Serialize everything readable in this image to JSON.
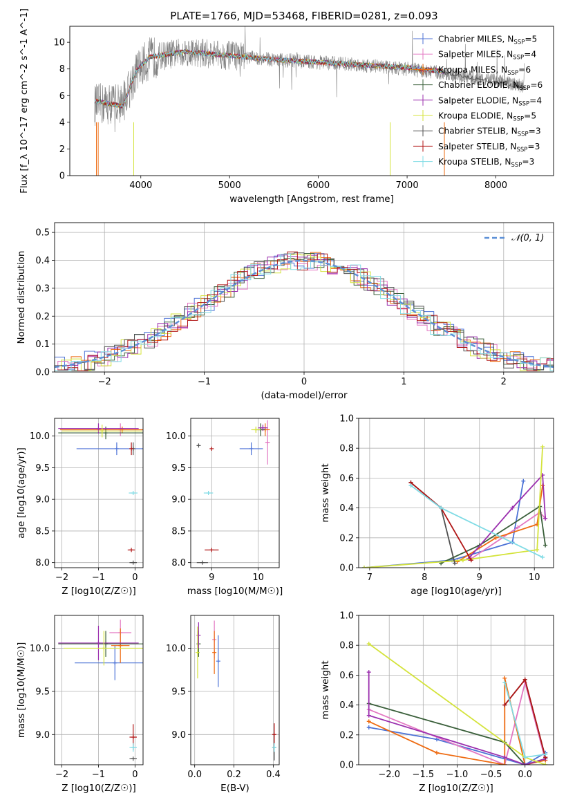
{
  "figure": {
    "title": "PLATE=1766, MJD=53468, FIBERID=0281, z=0.093"
  },
  "chart_data": [
    {
      "id": "spectrum",
      "type": "line",
      "title": "PLATE=1766, MJD=53468, FIBERID=0281, z=0.093",
      "xlabel": "wavelength [Angstrom, rest frame]",
      "ylabel": "Flux [f_λ 10^-17 erg cm^-2 s^-1 A^-1]",
      "xlim": [
        3200,
        8650
      ],
      "ylim": [
        0,
        11.2
      ],
      "xticks": [
        4000,
        5000,
        6000,
        7000,
        8000
      ],
      "yticks": [
        0,
        2,
        4,
        6,
        8,
        10
      ],
      "grid": false,
      "legend_position": "top-right",
      "data_trace": {
        "name": "data",
        "color": "#808080",
        "x_range": [
          3480,
          8320
        ],
        "continuum": {
          "x": [
            3480,
            3800,
            3950,
            4100,
            4500,
            5000,
            5500,
            6000,
            6500,
            7000,
            7500,
            8000,
            8320
          ],
          "y": [
            5.3,
            5.5,
            7.8,
            8.8,
            9.3,
            9.0,
            8.7,
            8.5,
            8.3,
            8.0,
            7.6,
            7.1,
            6.7
          ]
        }
      },
      "series": [
        {
          "name": "Chabrier MILES, N_SSP=5",
          "color": "#4c72d6"
        },
        {
          "name": "Salpeter MILES, N_SSP=4",
          "color": "#e377c2"
        },
        {
          "name": "Kroupa MILES, N_SSP=6",
          "color": "#ee6a10"
        },
        {
          "name": "Chabrier ELODIE, N_SSP=6",
          "color": "#3a5f3a"
        },
        {
          "name": "Salpeter ELODIE, N_SSP=4",
          "color": "#9b2fae"
        },
        {
          "name": "Kroupa ELODIE, N_SSP=5",
          "color": "#d4e33b"
        },
        {
          "name": "Chabrier STELIB, N_SSP=3",
          "color": "#505050"
        },
        {
          "name": "Salpeter STELIB, N_SSP=3",
          "color": "#b01515"
        },
        {
          "name": "Kroupa STELIB, N_SSP=3",
          "color": "#7fdbe5"
        }
      ],
      "model_continuum": {
        "x": [
          3480,
          3800,
          3950,
          4100,
          4500,
          5000,
          5500,
          6000,
          6500,
          7000,
          7420
        ],
        "y": [
          5.6,
          5.2,
          7.9,
          8.9,
          9.3,
          9.0,
          8.7,
          8.5,
          8.3,
          8.1,
          7.8
        ]
      }
    },
    {
      "id": "residuals",
      "type": "line",
      "xlabel": "(data-model)/error",
      "ylabel": "Normed distribution",
      "xlim": [
        -2.5,
        2.5
      ],
      "ylim": [
        0,
        0.535
      ],
      "xticks": [
        -2,
        -1,
        0,
        1,
        2
      ],
      "yticks": [
        0.0,
        0.1,
        0.2,
        0.3,
        0.4,
        0.5
      ],
      "grid": true,
      "legend_position": "top-right",
      "legend": "𝒩(0, 1)",
      "gaussian": {
        "mu": 0,
        "sigma": 1,
        "color": "#5b8fd6"
      },
      "hist_bin_width": 0.1
    },
    {
      "id": "age-vs-z",
      "type": "scatter",
      "xlabel": "Z [log10(Z/Z☉)]",
      "ylabel": "age [log10(age/yr)]",
      "xlim": [
        -2.2,
        0.22
      ],
      "ylim": [
        7.92,
        10.28
      ],
      "xticks": [
        -2,
        -1,
        0
      ],
      "yticks": [
        8.0,
        8.5,
        9.0,
        9.5,
        10.0
      ],
      "grid": true,
      "points": [
        {
          "series": 0,
          "x": -0.5,
          "y": 9.8,
          "xerr": 1.1,
          "yerr": 0.1
        },
        {
          "series": 1,
          "x": -0.4,
          "y": 10.1,
          "xerr": 1.6,
          "yerr": 0.1
        },
        {
          "series": 2,
          "x": -0.35,
          "y": 10.1,
          "xerr": 1.7,
          "yerr": 0.05
        },
        {
          "series": 3,
          "x": -0.8,
          "y": 10.05,
          "xerr": 1.3,
          "yerr": 0.1
        },
        {
          "series": 4,
          "x": -1.0,
          "y": 10.12,
          "xerr": 1.1,
          "yerr": 0.08
        },
        {
          "series": 5,
          "x": -0.9,
          "y": 10.08,
          "xerr": 1.1,
          "yerr": 0.1
        },
        {
          "series": 6,
          "x": -0.05,
          "y": 8.0,
          "xerr": 0.1,
          "yerr": 0.0
        },
        {
          "series": 6,
          "x": -0.05,
          "y": 9.8,
          "xerr": 0.02,
          "yerr": 0.1
        },
        {
          "series": 7,
          "x": -0.1,
          "y": 8.2,
          "xerr": 0.1,
          "yerr": 0.0
        },
        {
          "series": 7,
          "x": -0.1,
          "y": 9.8,
          "xerr": 0.02,
          "yerr": 0.1
        },
        {
          "series": 8,
          "x": -0.05,
          "y": 9.1,
          "xerr": 0.12,
          "yerr": 0.0
        }
      ]
    },
    {
      "id": "age-vs-mass",
      "type": "scatter",
      "xlabel": "mass [log10(M/M☉)]",
      "ylabel": "",
      "xlim": [
        8.55,
        10.45
      ],
      "ylim": [
        7.92,
        10.28
      ],
      "xticks": [
        9,
        10
      ],
      "yticks": [
        8.0,
        8.5,
        9.0,
        9.5,
        10.0
      ],
      "grid": true,
      "points": [
        {
          "series": 0,
          "x": 9.85,
          "y": 9.8,
          "xerr": 0.25,
          "yerr": 0.1
        },
        {
          "series": 1,
          "x": 10.2,
          "y": 9.9,
          "xerr": 0.05,
          "yerr": 0.35
        },
        {
          "series": 2,
          "x": 10.15,
          "y": 10.1,
          "xerr": 0.1,
          "yerr": 0.1
        },
        {
          "series": 3,
          "x": 10.05,
          "y": 10.1,
          "xerr": 0.1,
          "yerr": 0.1
        },
        {
          "series": 4,
          "x": 10.1,
          "y": 10.13,
          "xerr": 0.1,
          "yerr": 0.05
        },
        {
          "series": 5,
          "x": 9.95,
          "y": 10.1,
          "xerr": 0.1,
          "yerr": 0.05
        },
        {
          "series": 6,
          "x": 8.8,
          "y": 8.0,
          "xerr": 0.12,
          "yerr": 0.0
        },
        {
          "series": 6,
          "x": 8.72,
          "y": 9.85,
          "xerr": 0.0,
          "yerr": 0.0
        },
        {
          "series": 7,
          "x": 9.0,
          "y": 8.2,
          "xerr": 0.15,
          "yerr": 0.0
        },
        {
          "series": 7,
          "x": 9.0,
          "y": 9.8,
          "xerr": 0.0,
          "yerr": 0.0
        },
        {
          "series": 8,
          "x": 8.93,
          "y": 9.1,
          "xerr": 0.1,
          "yerr": 0.0
        }
      ]
    },
    {
      "id": "massweight-vs-age",
      "type": "line",
      "xlabel": "age [log10(age/yr)]",
      "ylabel": "mass weight",
      "xlim": [
        6.8,
        10.35
      ],
      "ylim": [
        0,
        1.0
      ],
      "xticks": [
        7,
        8,
        9,
        10
      ],
      "yticks": [
        0.0,
        0.2,
        0.4,
        0.6,
        0.8,
        1.0
      ],
      "grid": true,
      "lines": [
        {
          "series": 0,
          "x": [
            6.9,
            8.5,
            9.6,
            9.8
          ],
          "y": [
            0.0,
            0.05,
            0.17,
            0.58
          ]
        },
        {
          "series": 1,
          "x": [
            8.85,
            9.7,
            10.1,
            10.2
          ],
          "y": [
            0.06,
            0.27,
            0.37,
            0.33
          ]
        },
        {
          "series": 2,
          "x": [
            8.6,
            9.3,
            10.05,
            10.15
          ],
          "y": [
            0.04,
            0.2,
            0.29,
            0.55
          ]
        },
        {
          "series": 3,
          "x": [
            8.3,
            9.0,
            10.1,
            10.2
          ],
          "y": [
            0.03,
            0.15,
            0.41,
            0.15
          ]
        },
        {
          "series": 4,
          "x": [
            8.8,
            9.6,
            10.15,
            10.2
          ],
          "y": [
            0.06,
            0.4,
            0.62,
            0.33
          ]
        },
        {
          "series": 5,
          "x": [
            6.9,
            8.7,
            10.05,
            10.15
          ],
          "y": [
            0.0,
            0.05,
            0.12,
            0.81
          ]
        },
        {
          "series": 6,
          "x": [
            7.75,
            8.3,
            8.55
          ],
          "y": [
            0.57,
            0.4,
            0.03
          ]
        },
        {
          "series": 7,
          "x": [
            7.75,
            8.3,
            8.85
          ],
          "y": [
            0.57,
            0.4,
            0.05
          ]
        },
        {
          "series": 8,
          "x": [
            7.75,
            8.3,
            10.15
          ],
          "y": [
            0.55,
            0.4,
            0.07
          ]
        }
      ]
    },
    {
      "id": "mass-vs-z",
      "type": "scatter",
      "xlabel": "Z [log10(Z/Z☉)]",
      "ylabel": "mass [log10(M/M☉)]",
      "xlim": [
        -2.2,
        0.22
      ],
      "ylim": [
        8.65,
        10.38
      ],
      "xticks": [
        -2,
        -1,
        0
      ],
      "yticks": [
        9.0,
        9.5,
        10.0
      ],
      "grid": true,
      "points": [
        {
          "series": 0,
          "x": -0.55,
          "y": 9.83,
          "xerr": 1.1,
          "yerr": 0.2
        },
        {
          "series": 1,
          "x": -0.4,
          "y": 10.18,
          "xerr": 0.3,
          "yerr": 0.15
        },
        {
          "series": 2,
          "x": -0.4,
          "y": 10.03,
          "xerr": 0.25,
          "yerr": 0.2
        },
        {
          "series": 3,
          "x": -0.8,
          "y": 10.05,
          "xerr": 1.3,
          "yerr": 0.15
        },
        {
          "series": 4,
          "x": -1.0,
          "y": 10.06,
          "xerr": 1.1,
          "yerr": 0.2
        },
        {
          "series": 5,
          "x": -0.85,
          "y": 10.0,
          "xerr": 1.1,
          "yerr": 0.2
        },
        {
          "series": 6,
          "x": -0.05,
          "y": 8.72,
          "xerr": 0.1,
          "yerr": 0.0
        },
        {
          "series": 7,
          "x": -0.05,
          "y": 8.97,
          "xerr": 0.1,
          "yerr": 0.15
        },
        {
          "series": 8,
          "x": -0.05,
          "y": 8.85,
          "xerr": 0.1,
          "yerr": 0.05
        }
      ]
    },
    {
      "id": "mass-vs-ebv",
      "type": "scatter",
      "xlabel": "E(B-V)",
      "ylabel": "",
      "xlim": [
        -0.02,
        0.43
      ],
      "ylim": [
        8.65,
        10.38
      ],
      "xticks": [
        0.0,
        0.2,
        0.4
      ],
      "yticks": [
        9.0,
        9.5,
        10.0
      ],
      "grid": true,
      "points": [
        {
          "series": 0,
          "x": 0.12,
          "y": 9.85,
          "xerr": 0.0,
          "yerr": 0.3
        },
        {
          "series": 1,
          "x": 0.1,
          "y": 10.1,
          "xerr": 0.0,
          "yerr": 0.22
        },
        {
          "series": 2,
          "x": 0.1,
          "y": 9.95,
          "xerr": 0.0,
          "yerr": 0.25
        },
        {
          "series": 3,
          "x": 0.02,
          "y": 10.05,
          "xerr": 0.0,
          "yerr": 0.15
        },
        {
          "series": 4,
          "x": 0.02,
          "y": 10.15,
          "xerr": 0.0,
          "yerr": 0.15
        },
        {
          "series": 5,
          "x": 0.015,
          "y": 9.95,
          "xerr": 0.0,
          "yerr": 0.3
        },
        {
          "series": 6,
          "x": 0.405,
          "y": 8.85,
          "xerr": 0.0,
          "yerr": 0.15
        },
        {
          "series": 7,
          "x": 0.405,
          "y": 9.0,
          "xerr": 0.0,
          "yerr": 0.13
        },
        {
          "series": 8,
          "x": 0.405,
          "y": 8.85,
          "xerr": 0.0,
          "yerr": 0.05
        }
      ]
    },
    {
      "id": "massweight-vs-z",
      "type": "line",
      "xlabel": "Z [log10(Z/Z☉)]",
      "ylabel": "mass weight",
      "xlim": [
        -2.45,
        0.42
      ],
      "ylim": [
        0,
        1.0
      ],
      "xticks": [
        -2.0,
        -1.5,
        -1.0,
        -0.5,
        0.0
      ],
      "yticks": [
        0.0,
        0.2,
        0.4,
        0.6,
        0.8,
        1.0
      ],
      "grid": true,
      "lines": [
        {
          "series": 0,
          "x": [
            -2.3,
            -1.3,
            0.0,
            0.3
          ],
          "y": [
            0.25,
            0.17,
            0.0,
            0.08
          ]
        },
        {
          "series": 1,
          "x": [
            -2.3,
            -0.3,
            0.0,
            0.3
          ],
          "y": [
            0.37,
            0.0,
            0.55,
            0.03
          ]
        },
        {
          "series": 2,
          "x": [
            -2.3,
            -1.3,
            -0.3,
            -0.3,
            0.0,
            0.3
          ],
          "y": [
            0.29,
            0.08,
            0.0,
            0.58,
            0.0,
            0.03
          ]
        },
        {
          "series": 3,
          "x": [
            -2.3,
            -0.3,
            0.0,
            0.3
          ],
          "y": [
            0.41,
            0.15,
            0.0,
            0.04
          ]
        },
        {
          "series": 4,
          "x": [
            -2.3,
            -2.3,
            -0.3,
            0.0,
            0.3
          ],
          "y": [
            0.62,
            0.33,
            0.05,
            0.0,
            0.04
          ]
        },
        {
          "series": 5,
          "x": [
            -2.3,
            0.0,
            0.3
          ],
          "y": [
            0.81,
            0.05,
            0.0
          ]
        },
        {
          "series": 6,
          "x": [
            -0.3,
            0.0,
            0.3
          ],
          "y": [
            0.4,
            0.57,
            0.05
          ]
        },
        {
          "series": 7,
          "x": [
            -0.3,
            0.0,
            0.3
          ],
          "y": [
            0.4,
            0.57,
            0.05
          ]
        },
        {
          "series": 8,
          "x": [
            -0.3,
            0.0,
            0.3
          ],
          "y": [
            0.55,
            0.05,
            0.07
          ]
        }
      ]
    }
  ]
}
